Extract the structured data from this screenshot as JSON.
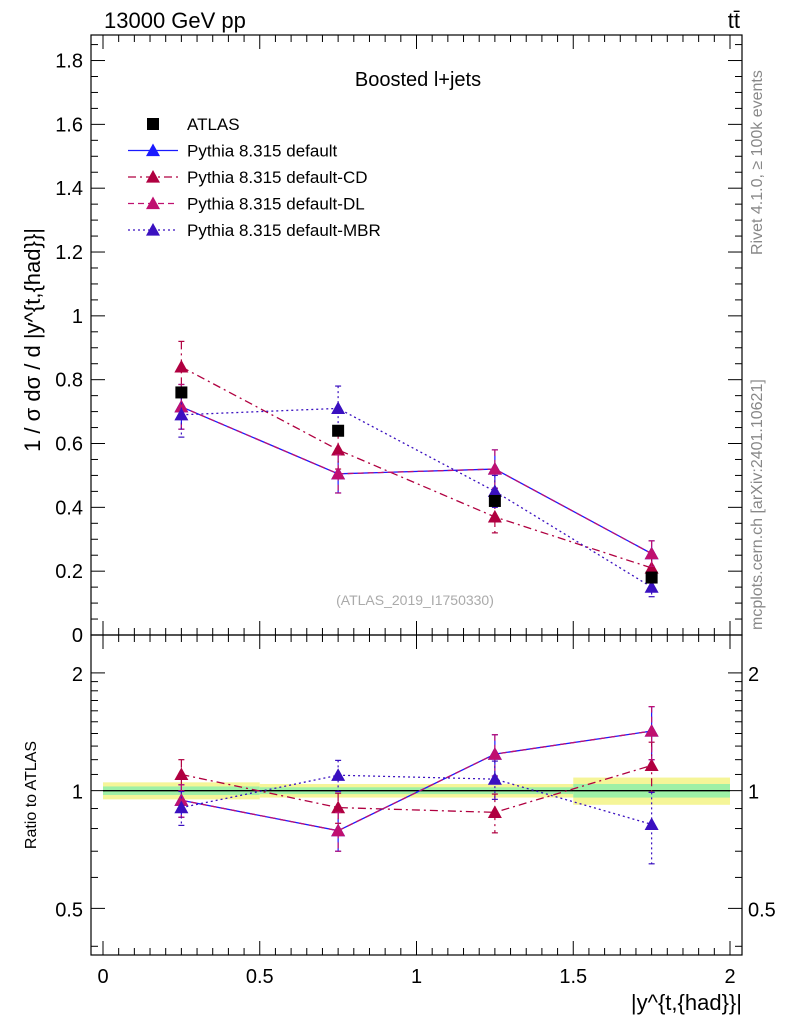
{
  "header": {
    "energy_label": "13000 GeV pp",
    "process_label": "tt̄"
  },
  "side_labels": {
    "rivet": "Rivet 4.1.0, ≥ 100k events",
    "source": "mcplots.cern.ch [arXiv:2401.10621]"
  },
  "analysis_tag": "(ATLAS_2019_I1750330)",
  "chart_data": [
    {
      "type": "scatter",
      "title": "Boosted l+jets",
      "xlabel": "|y^{t,{had}}|",
      "ylabel": "1 / σ dσ / d |y^{t,{had}}|",
      "xlim": [
        0,
        2
      ],
      "ylim": [
        0,
        1.88
      ],
      "x_ticks": [
        "0",
        "0.5",
        "1",
        "1.5",
        "2"
      ],
      "y_ticks": [
        "0",
        "0.2",
        "0.4",
        "0.6",
        "0.8",
        "1",
        "1.2",
        "1.4",
        "1.6",
        "1.8"
      ],
      "x": [
        0.25,
        0.75,
        1.25,
        1.75
      ],
      "series": [
        {
          "name": "ATLAS",
          "color": "#000000",
          "marker": "square",
          "line": "none",
          "values": [
            0.76,
            0.64,
            0.42,
            0.18
          ],
          "errors": [
            0.0,
            0.0,
            0.0,
            0.0
          ]
        },
        {
          "name": "Pythia 8.315 default",
          "color": "#1a1aff",
          "marker": "triangle",
          "line": "solid",
          "values": [
            0.715,
            0.505,
            0.52,
            0.255
          ],
          "errors": [
            0.07,
            0.06,
            0.06,
            0.04
          ]
        },
        {
          "name": "Pythia 8.315 default-CD",
          "color": "#b00040",
          "marker": "triangle",
          "line": "dashdot",
          "values": [
            0.84,
            0.58,
            0.37,
            0.21
          ],
          "errors": [
            0.08,
            0.06,
            0.05,
            0.03
          ]
        },
        {
          "name": "Pythia 8.315 default-DL",
          "color": "#c01070",
          "marker": "triangle",
          "line": "dashed",
          "values": [
            0.715,
            0.505,
            0.52,
            0.255
          ],
          "errors": [
            0.07,
            0.06,
            0.06,
            0.04
          ]
        },
        {
          "name": "Pythia 8.315 default-MBR",
          "color": "#3a10c0",
          "marker": "triangle",
          "line": "dotted",
          "values": [
            0.69,
            0.71,
            0.45,
            0.15
          ],
          "errors": [
            0.07,
            0.07,
            0.05,
            0.03
          ]
        }
      ]
    },
    {
      "type": "scatter",
      "title": "",
      "xlabel": "|y^{t,{had}}|",
      "ylabel": "Ratio to ATLAS",
      "xlim": [
        0,
        2
      ],
      "ylim": [
        0.38,
        2.5
      ],
      "y_scale": "log",
      "x_ticks": [
        "0",
        "0.5",
        "1",
        "1.5",
        "2"
      ],
      "y_ticks": [
        "0.5",
        "1",
        "2"
      ],
      "x": [
        0.25,
        0.75,
        1.25,
        1.75
      ],
      "band": {
        "x_edges": [
          0,
          0.5,
          1.0,
          1.5,
          2.0
        ],
        "outer": [
          0.05,
          0.04,
          0.04,
          0.08
        ],
        "inner": [
          0.025,
          0.02,
          0.02,
          0.04
        ]
      },
      "series": [
        {
          "name": "Pythia 8.315 default",
          "color": "#1a1aff",
          "line": "solid",
          "values": [
            0.945,
            0.79,
            1.24,
            1.42
          ],
          "errors": [
            0.09,
            0.09,
            0.15,
            0.22
          ]
        },
        {
          "name": "Pythia 8.315 default-CD",
          "color": "#b00040",
          "line": "dashdot",
          "values": [
            1.1,
            0.905,
            0.88,
            1.16
          ],
          "errors": [
            0.1,
            0.08,
            0.1,
            0.17
          ]
        },
        {
          "name": "Pythia 8.315 default-DL",
          "color": "#c01070",
          "line": "dashed",
          "values": [
            0.945,
            0.79,
            1.24,
            1.42
          ],
          "errors": [
            0.09,
            0.09,
            0.15,
            0.22
          ]
        },
        {
          "name": "Pythia 8.315 default-MBR",
          "color": "#3a10c0",
          "line": "dotted",
          "values": [
            0.905,
            1.095,
            1.07,
            0.82
          ],
          "errors": [
            0.09,
            0.1,
            0.12,
            0.17
          ]
        }
      ]
    }
  ]
}
